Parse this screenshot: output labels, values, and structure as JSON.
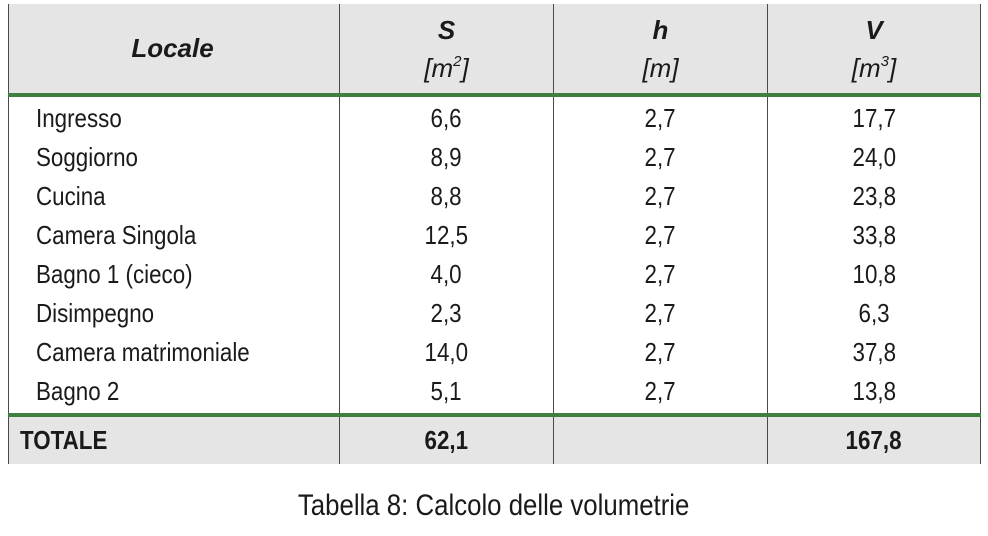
{
  "table": {
    "headers": {
      "locale": "Locale",
      "s_symbol": "S",
      "s_unit_pre": "[m",
      "s_unit_sup": "2",
      "s_unit_post": "]",
      "h_symbol": "h",
      "h_unit": "[m]",
      "v_symbol": "V",
      "v_unit_pre": "[m",
      "v_unit_sup": "3",
      "v_unit_post": "]"
    },
    "rows": [
      {
        "locale": "Ingresso",
        "s": "6,6",
        "h": "2,7",
        "v": "17,7"
      },
      {
        "locale": "Soggiorno",
        "s": "8,9",
        "h": "2,7",
        "v": "24,0"
      },
      {
        "locale": "Cucina",
        "s": "8,8",
        "h": "2,7",
        "v": "23,8"
      },
      {
        "locale": "Camera Singola",
        "s": "12,5",
        "h": "2,7",
        "v": "33,8"
      },
      {
        "locale": "Bagno 1 (cieco)",
        "s": "4,0",
        "h": "2,7",
        "v": "10,8"
      },
      {
        "locale": "Disimpegno",
        "s": "2,3",
        "h": "2,7",
        "v": "6,3"
      },
      {
        "locale": "Camera matrimoniale",
        "s": "14,0",
        "h": "2,7",
        "v": "37,8"
      },
      {
        "locale": "Bagno 2",
        "s": "5,1",
        "h": "2,7",
        "v": "13,8"
      }
    ],
    "total": {
      "label": "TOTALE",
      "s": "62,1",
      "h": "",
      "v": "167,8"
    }
  },
  "caption": "Tabella 8: Calcolo delle volumetrie",
  "colors": {
    "header_bg": "#e5e5e5",
    "rule_green": "#3f7f3f"
  }
}
